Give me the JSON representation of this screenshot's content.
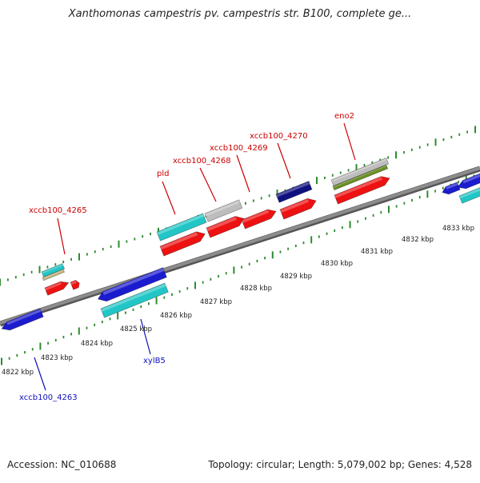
{
  "title": "Xanthomonas campestris pv. campestris str. B100, complete ge...",
  "footer": {
    "accession": "Accession: NC_010688",
    "topology": "Topology: circular; Length: 5,079,002 bp; Genes: 4,528"
  },
  "scale": {
    "unit": "kbp",
    "labels": [
      "4822 kbp",
      "4823 kbp",
      "4824 kbp",
      "4825 kbp",
      "4826 kbp",
      "4827 kbp",
      "4828 kbp",
      "4829 kbp",
      "4830 kbp",
      "4831 kbp",
      "4832 kbp",
      "4833 kbp"
    ]
  },
  "gene_labels": {
    "forward": [
      "xccb100_4265",
      "pld",
      "xccb100_4268",
      "xccb100_4269",
      "xccb100_4270",
      "eno2"
    ],
    "reverse": [
      "xccb100_4263",
      "xylB5"
    ]
  },
  "colors": {
    "backbone": "#8c8c8c",
    "tick": "#2e8b2e",
    "gene_blue": "#1c1ccf",
    "gene_cyan": "#22c6c6",
    "cds_red": "#ee1111",
    "navy": "#101080",
    "grey": "#bdbdbd",
    "olive": "#6a8f25",
    "tan": "#c8b888",
    "forward_label": "#cc0000",
    "reverse_label": "#1010bb",
    "scale_text": "#222222"
  }
}
